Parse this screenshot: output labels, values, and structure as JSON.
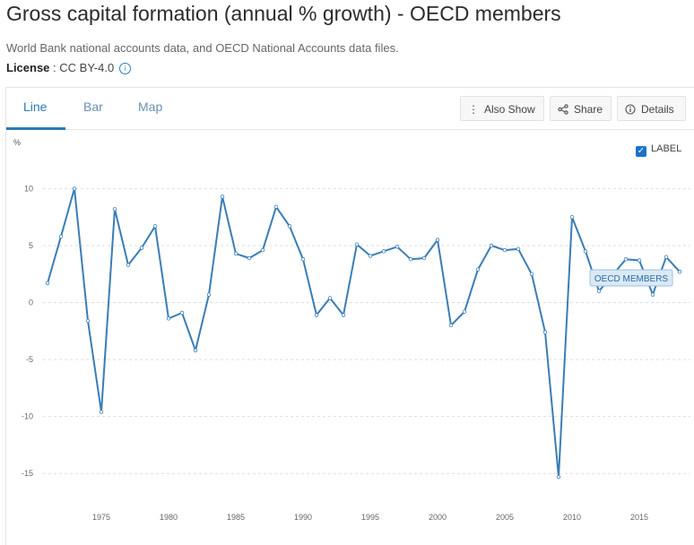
{
  "header": {
    "title": "Gross capital formation (annual % growth) - OECD members",
    "source": "World Bank national accounts data, and OECD National Accounts data files.",
    "license_label": "License",
    "license_separator": " : ",
    "license_value": "CC BY-4.0",
    "info_icon_glyph": "i"
  },
  "tabs": [
    {
      "label": "Line",
      "active": true
    },
    {
      "label": "Bar",
      "active": false
    },
    {
      "label": "Map",
      "active": false
    }
  ],
  "toolbar": {
    "also_show": "Also Show",
    "share": "Share",
    "details": "Details"
  },
  "label_toggle": {
    "text": "LABEL",
    "checked": true
  },
  "colors": {
    "line": "#3a7db6",
    "grid": "#dddddd",
    "accent": "#2a7ab8"
  },
  "chart_data": {
    "type": "line",
    "unit": "%",
    "series_label": "OECD MEMBERS",
    "x": [
      1971,
      1972,
      1973,
      1974,
      1975,
      1976,
      1977,
      1978,
      1979,
      1980,
      1981,
      1982,
      1983,
      1984,
      1985,
      1986,
      1987,
      1988,
      1989,
      1990,
      1991,
      1992,
      1993,
      1994,
      1995,
      1996,
      1997,
      1998,
      1999,
      2000,
      2001,
      2002,
      2003,
      2004,
      2005,
      2006,
      2007,
      2008,
      2009,
      2010,
      2011,
      2012,
      2013,
      2014,
      2015,
      2016,
      2017,
      2018
    ],
    "values": [
      1.7,
      5.8,
      10.0,
      -1.6,
      -9.6,
      8.2,
      3.3,
      4.8,
      6.7,
      -1.4,
      -0.9,
      -4.2,
      0.7,
      9.3,
      4.3,
      3.9,
      4.6,
      8.4,
      6.7,
      3.8,
      -1.1,
      0.4,
      -1.1,
      5.1,
      4.1,
      4.5,
      4.9,
      3.8,
      3.9,
      5.5,
      -2.0,
      -0.8,
      2.9,
      5.0,
      4.6,
      4.7,
      2.5,
      -2.6,
      -15.3,
      7.5,
      4.5,
      1.0,
      2.4,
      3.8,
      3.7,
      0.7,
      4.0,
      2.7
    ],
    "yticks": [
      10,
      5,
      0,
      -5,
      -10,
      -15
    ],
    "xticks": [
      1975,
      1980,
      1985,
      1990,
      1995,
      2000,
      2005,
      2010,
      2015
    ],
    "xlim": [
      1970,
      2018.8
    ],
    "ylim": [
      -17.5,
      12
    ],
    "grid": true
  }
}
